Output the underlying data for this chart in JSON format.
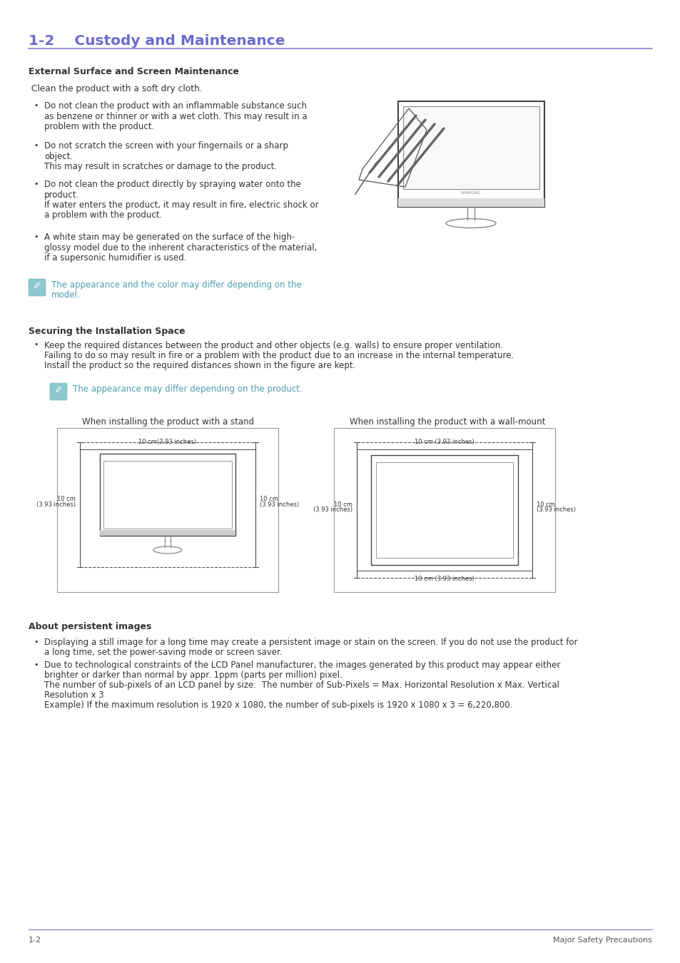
{
  "bg_color": "#ffffff",
  "header_color": "#6b6bcc",
  "header_text": "1-2    Custody and Maintenance",
  "header_line_color": "#7777cc",
  "section1_title": "External Surface and Screen Maintenance",
  "section1_intro": " Clean the product with a soft dry cloth.",
  "bullets1": [
    [
      "Do not clean the product with an inflammable substance such",
      "as benzene or thinner or with a wet cloth. This may result in a",
      "problem with the product."
    ],
    [
      "Do not scratch the screen with your fingernails or a sharp",
      "object.",
      "This may result in scratches or damage to the product."
    ],
    [
      "Do not clean the product directly by spraying water onto the",
      "product.",
      "If water enters the product, it may result in fire, electric shock or",
      "a problem with the product."
    ],
    [
      "A white stain may be generated on the surface of the high-",
      "glossy model due to the inherent characteristics of the material,",
      "if a supersonic humidifier is used."
    ]
  ],
  "note1_color": "#4d9db0",
  "note1_lines": [
    "The appearance and the color may differ depending on the",
    "model."
  ],
  "section2_title": "Securing the Installation Space",
  "bullet2_lines": [
    "Keep the required distances between the product and other objects (e.g. walls) to ensure proper ventilation.",
    "Failing to do so may result in fire or a problem with the product due to an increase in the internal temperature.",
    "Install the product so the required distances shown in the figure are kept."
  ],
  "note2_line": "The appearance may differ depending on the product.",
  "stand_label": "When installing the product with a stand",
  "wallmount_label": "When installing the product with a wall-mount",
  "dim_text_top": "10 cm(3.93 inches)",
  "dim_text_side_l": [
    "10 cm",
    "(3.93 inches)"
  ],
  "dim_text_side_r": [
    "10 cm",
    "(3.93 inches)"
  ],
  "dim_text_bottom": "10 cm (3.93 inches)",
  "dim_text_top_w": "10 cm (3.93 inches)",
  "dim_text_side_lw": [
    "10 cm",
    "(3.93 inches)"
  ],
  "dim_text_side_rw": [
    "10 cm",
    "(3.93 inches)"
  ],
  "section3_title": "About persistent images",
  "bullets3_lines": [
    [
      "Displaying a still image for a long time may create a persistent image or stain on the screen. If you do not use the product for",
      "a long time, set the power-saving mode or screen saver."
    ],
    [
      "Due to technological constraints of the LCD Panel manufacturer, the images generated by this product may appear either",
      "brighter or darker than normal by appr. 1ppm (parts per million) pixel.",
      "The number of sub-pixels of an LCD panel by size:  The number of Sub-Pixels = Max. Horizontal Resolution x Max. Vertical",
      "Resolution x 3",
      "Example) If the maximum resolution is 1920 x 1080, the number of sub-pixels is 1920 x 1080 x 3 = 6,220,800."
    ]
  ],
  "footer_left": "1-2",
  "footer_right": "Major Safety Precautions",
  "text_color": "#333333",
  "small_text_color": "#555555",
  "samsung_label": "SAMSUNG"
}
